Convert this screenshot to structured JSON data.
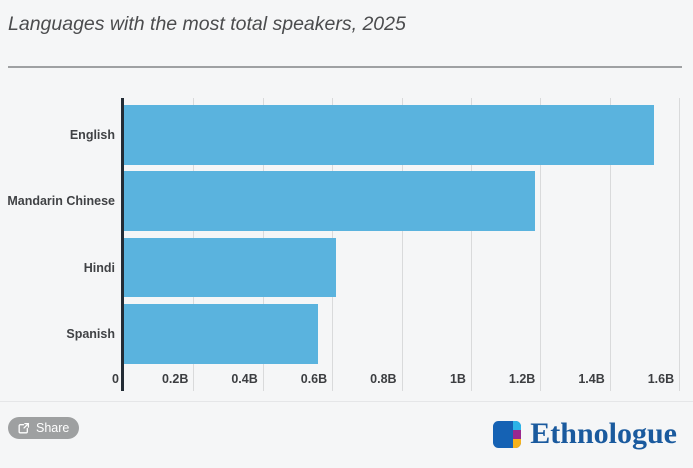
{
  "header": {
    "title": "Languages with the most total speakers, 2025"
  },
  "chart_data": {
    "type": "bar",
    "orientation": "horizontal",
    "title": "Languages with the most total speakers, 2025",
    "categories": [
      "English",
      "Mandarin Chinese",
      "Hindi",
      "Spanish"
    ],
    "values": [
      1.528,
      1.184,
      0.61,
      0.558
    ],
    "unit": "billions of speakers",
    "xlabel": "",
    "ylabel": "",
    "xlim": [
      0,
      1.64
    ],
    "x_ticks": [
      {
        "value": 0,
        "label": "0"
      },
      {
        "value": 0.2,
        "label": "0.2B"
      },
      {
        "value": 0.4,
        "label": "0.4B"
      },
      {
        "value": 0.6,
        "label": "0.6B"
      },
      {
        "value": 0.8,
        "label": "0.8B"
      },
      {
        "value": 1,
        "label": "1B"
      },
      {
        "value": 1.2,
        "label": "1.2B"
      },
      {
        "value": 1.4,
        "label": "1.4B"
      },
      {
        "value": 1.6,
        "label": "1.6B"
      }
    ],
    "grid": true,
    "legend": false,
    "bar_color": "#5ab3de",
    "axis_color": "#232c35",
    "gridline_color": "#d9dadb"
  },
  "footer": {
    "share_label": "Share",
    "brand": "Ethnologue",
    "brand_color": "#1a5a9e",
    "brand_icon_colors": {
      "blue": "#1562b4",
      "cyan": "#2cb4e8",
      "purple": "#99288f",
      "yellow": "#f6b21b"
    }
  }
}
